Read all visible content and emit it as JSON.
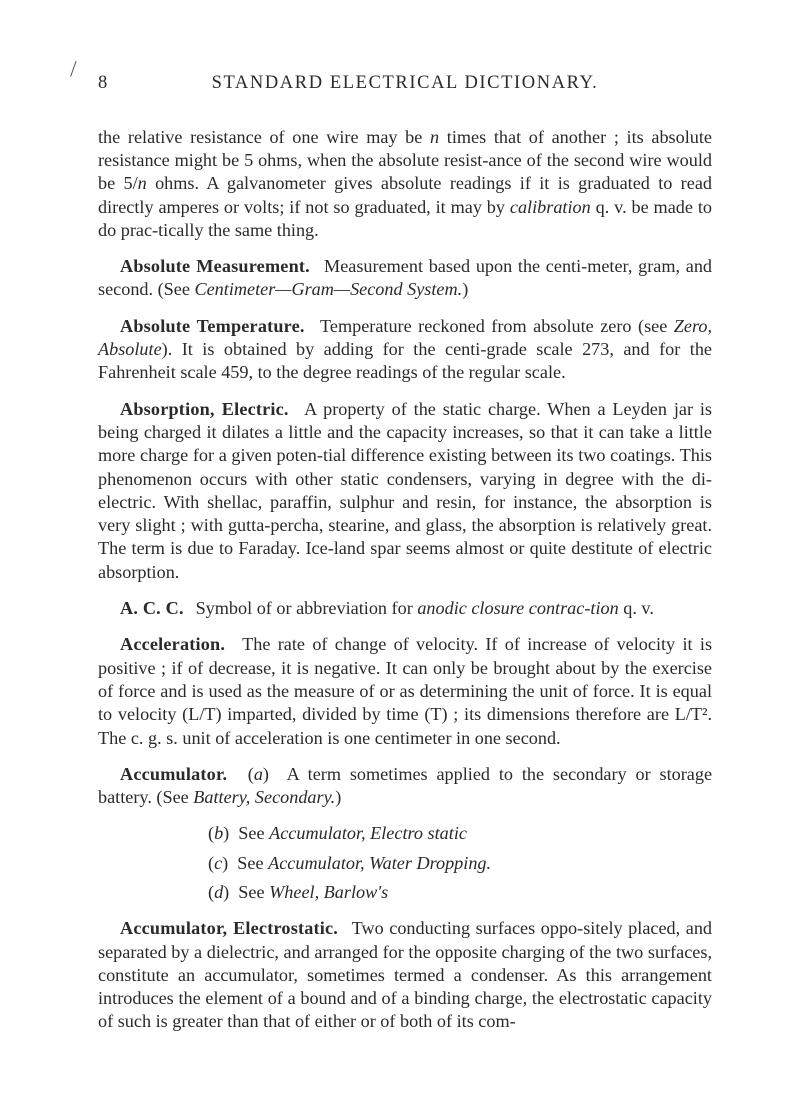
{
  "slash_mark": "/",
  "header": {
    "page_number": "8",
    "running_title": "STANDARD  ELECTRICAL  DICTIONARY."
  },
  "entries": {
    "relative_resistance": "the relative resistance of one wire may be <em class=\"term\">n</em> times that of another ; its absolute resistance might be 5 ohms, when the absolute resist-ance of the second wire would be 5/<em class=\"term\">n</em> ohms. A galvanometer gives absolute readings if it is graduated to read directly amperes or volts; if not so graduated, it may by <em class=\"term\">calibration</em> q. v. be made to do prac-tically the same thing.",
    "absolute_measurement": {
      "head": "Absolute Measurement.",
      "body": "Measurement based upon the centi-meter, gram, and second. (See <em class=\"term\">Centimeter—Gram—Second System.</em>)"
    },
    "absolute_temperature": {
      "head": "Absolute Temperature.",
      "body": "Temperature reckoned from absolute zero (see <em class=\"term\">Zero, Absolute</em>). It is obtained by adding for the centi-grade scale 273, and for the Fahrenheit scale 459, to the degree readings of the regular scale."
    },
    "absorption_electric": {
      "head": "Absorption, Electric.",
      "body": "A property of the static charge. When a Leyden jar is being charged it dilates a little and the capacity increases, so that it can take a little more charge for a given poten-tial difference existing between its two coatings. This phenomenon occurs with other static condensers, varying in degree with the di-electric. With shellac, paraffin, sulphur and resin, for instance, the absorption is very slight ; with gutta-percha, stearine, and glass, the absorption is relatively great. The term is due to Faraday. Ice-land spar seems almost or quite destitute of electric absorption."
    },
    "acc_abbrev": {
      "head": "A. C. C.",
      "body": "Symbol of or abbreviation for <em class=\"term\">anodic closure contrac-tion</em> q. v."
    },
    "acceleration": {
      "head": "Acceleration.",
      "body": "The rate of change of velocity. If of increase of velocity it is positive ; if of decrease, it is negative. It can only be brought about by the exercise of force and is used as the measure of or as determining the unit of force. It is equal to velocity (L/T) imparted, divided by time (T) ; its dimensions therefore are L/T². The c. g. s. unit of acceleration is one centimeter in one second."
    },
    "accumulator": {
      "head": "Accumulator.",
      "body_a": "(<em class=\"term\">a</em>) &nbsp;A term sometimes applied to the secondary or storage battery. (See <em class=\"term\">Battery, Secondary.</em>)",
      "sub_b": "(<em class=\"term\">b</em>) &nbsp;See <em class=\"term\">Accumulator, Electro static</em>",
      "sub_c": "(<em class=\"term\">c</em>) &nbsp;See <em class=\"term\">Accumulator, Water Dropping.</em>",
      "sub_d": "(<em class=\"term\">d</em>) &nbsp;See <em class=\"term\">Wheel, Barlow's</em>"
    },
    "accumulator_electrostatic": {
      "head": "Accumulator, Electrostatic.",
      "body": "Two conducting surfaces oppo-sitely placed, and separated by a dielectric, and arranged for the opposite charging of the two surfaces, constitute an accumulator, sometimes termed a condenser. As this arrangement introduces the element of a bound and of a binding charge, the electrostatic capacity of such is greater than that of either or of both of its com-"
    }
  }
}
